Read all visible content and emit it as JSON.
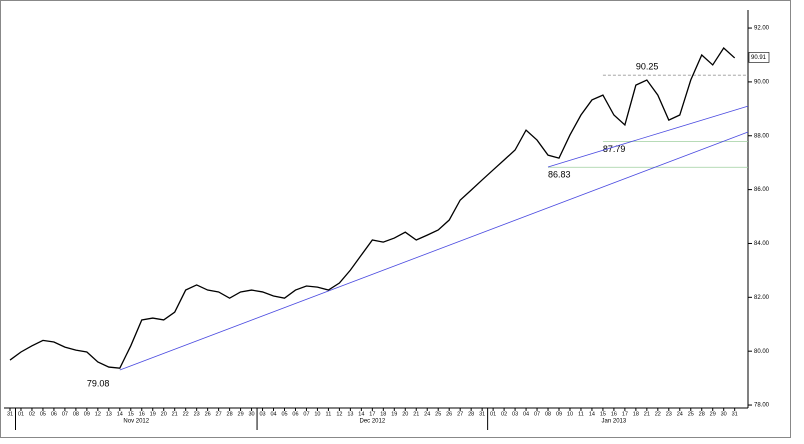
{
  "chart_data": {
    "type": "line",
    "categories": [
      "31",
      "01",
      "02",
      "05",
      "06",
      "07",
      "08",
      "09",
      "12",
      "13",
      "14",
      "15",
      "16",
      "19",
      "20",
      "21",
      "22",
      "23",
      "26",
      "27",
      "28",
      "29",
      "30",
      "03",
      "04",
      "05",
      "06",
      "07",
      "10",
      "11",
      "12",
      "13",
      "14",
      "17",
      "18",
      "19",
      "20",
      "21",
      "24",
      "25",
      "26",
      "27",
      "28",
      "31",
      "01",
      "02",
      "03",
      "04",
      "07",
      "08",
      "09",
      "10",
      "11",
      "14",
      "15",
      "16",
      "17",
      "18",
      "21",
      "22",
      "23",
      "24",
      "25",
      "28",
      "29",
      "30",
      "31"
    ],
    "series": [
      {
        "color": "#000000",
        "values": [
          79.67,
          79.97,
          80.2,
          80.4,
          80.34,
          80.15,
          80.04,
          79.97,
          79.6,
          79.41,
          79.37,
          80.2,
          81.16,
          81.23,
          81.16,
          81.45,
          82.27,
          82.46,
          82.27,
          82.2,
          81.97,
          82.2,
          82.27,
          82.2,
          82.05,
          81.97,
          82.27,
          82.42,
          82.38,
          82.27,
          82.53,
          83.01,
          83.57,
          84.13,
          84.05,
          84.2,
          84.42,
          84.13,
          84.31,
          84.5,
          84.87,
          85.61,
          85.98,
          86.36,
          86.73,
          87.1,
          87.47,
          88.21,
          87.84,
          87.28,
          87.17,
          88.03,
          88.77,
          89.33,
          89.51,
          88.77,
          88.4,
          89.88,
          90.07,
          89.51,
          88.58,
          88.77,
          90.07,
          91.0,
          90.63,
          91.26,
          90.89
        ]
      }
    ],
    "months": [
      {
        "label": "Nov 2012",
        "start": 1,
        "end": 22
      },
      {
        "label": "Dec 2012",
        "start": 23,
        "end": 43
      },
      {
        "label": "Jan 2013",
        "start": 44,
        "end": 66
      }
    ],
    "ylim": [
      77.89,
      92.67
    ],
    "yticks": [
      {
        "value": 78,
        "label": "78.00"
      },
      {
        "value": 80,
        "label": "80.00"
      },
      {
        "value": 82,
        "label": "82.00"
      },
      {
        "value": 84,
        "label": "84.00"
      },
      {
        "value": 86,
        "label": "86.00"
      },
      {
        "value": 88,
        "label": "88.00"
      },
      {
        "value": 90,
        "label": "90.00"
      },
      {
        "value": 92,
        "label": "92.00"
      }
    ],
    "trendlines": [
      {
        "color": "#4a4ae0",
        "from": 10,
        "to": 66,
        "values": [
          79.3,
          87.95
        ]
      },
      {
        "color": "#4a4ae0",
        "from": 49,
        "to": 66,
        "values": [
          86.84,
          88.95
        ]
      }
    ],
    "levels": [
      {
        "value": 90.25,
        "from": 54,
        "color": "#999999",
        "dashed": true,
        "label_at": 57,
        "label_side": "above"
      },
      {
        "value": 87.79,
        "from": 54,
        "color": "#9fcf9f",
        "dashed": false,
        "label_at": 54,
        "label_side": "below"
      },
      {
        "value": 86.83,
        "from": 49,
        "color": "#9fcf9f",
        "dashed": false,
        "label_at": 49,
        "label_side": "below"
      },
      {
        "value": 79.08,
        "from": 7,
        "color": "none",
        "dashed": false,
        "label_at": 7,
        "label_side": "below"
      }
    ],
    "last_price": 90.91
  }
}
